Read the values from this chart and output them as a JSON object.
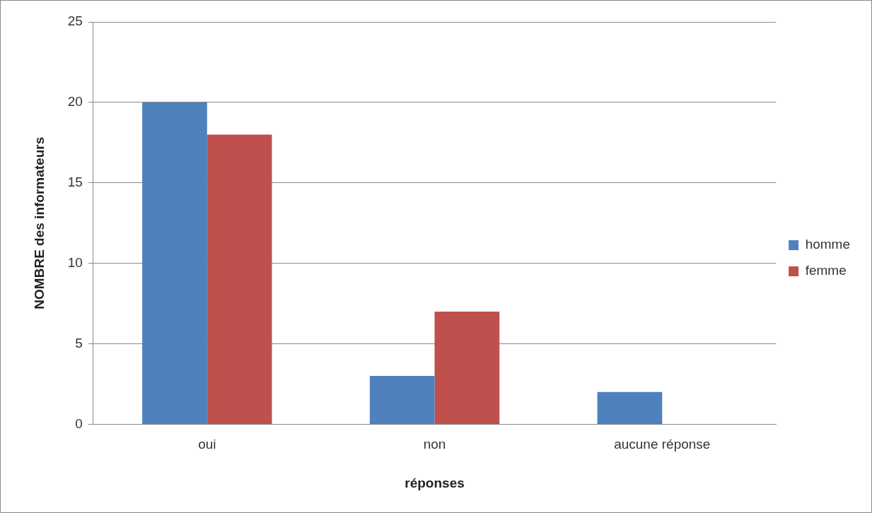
{
  "chart_data": {
    "type": "bar",
    "xlabel": "réponses",
    "ylabel": "NOMBRE des informateurs",
    "categories": [
      "oui",
      "non",
      "aucune réponse"
    ],
    "series": [
      {
        "name": "homme",
        "color": "#4f81bd",
        "values": [
          20,
          3,
          2
        ]
      },
      {
        "name": "femme",
        "color": "#c0504d",
        "values": [
          18,
          7,
          0
        ]
      }
    ],
    "ylim": [
      0,
      25
    ],
    "yticks": [
      0,
      5,
      10,
      15,
      20,
      25
    ],
    "grid": "y",
    "legend": "right"
  }
}
